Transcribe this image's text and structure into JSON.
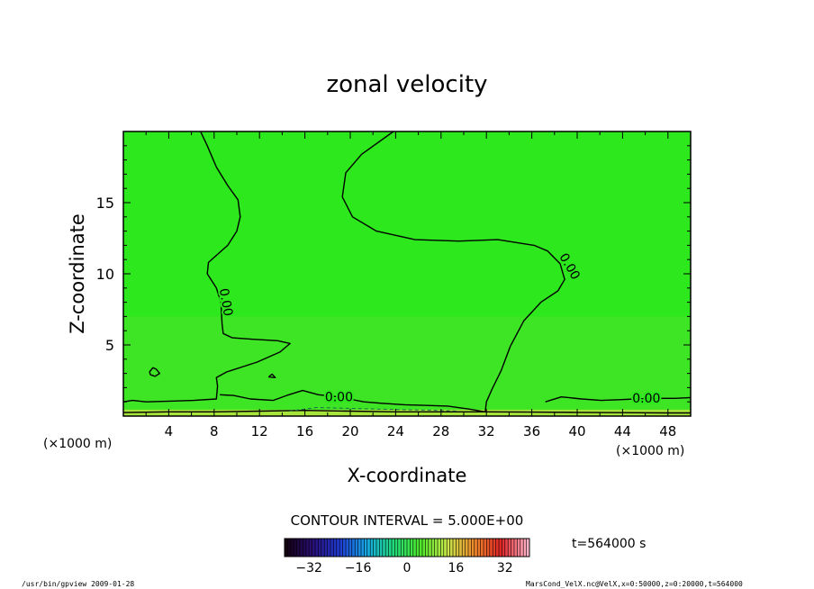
{
  "chart_data": {
    "type": "heatmap",
    "title": "zonal velocity",
    "xlabel": "X-coordinate",
    "ylabel": "Z-coordinate",
    "x_unit_left": "(×1000 m)",
    "x_unit_right": "(×1000 m)",
    "xlim": [
      0,
      50
    ],
    "ylim": [
      0,
      20
    ],
    "x_ticks": [
      4,
      8,
      12,
      16,
      20,
      24,
      28,
      32,
      36,
      40,
      44,
      48
    ],
    "x_tick_labels": [
      "4",
      "8",
      "12",
      "16",
      "20",
      "24",
      "28",
      "32",
      "36",
      "40",
      "44",
      "48"
    ],
    "y_ticks": [
      5,
      10,
      15
    ],
    "y_tick_labels": [
      "5",
      "10",
      "15"
    ],
    "contour_interval_text": "CONTOUR INTERVAL = 5.000E+00",
    "time_text": "t=564000 s",
    "colorbar": {
      "range": [
        -40,
        40
      ],
      "ticks": [
        -32,
        -16,
        0,
        16,
        32
      ],
      "tick_labels": [
        "−32",
        "−16",
        "0",
        "16",
        "32"
      ]
    },
    "contour_labels": [
      {
        "text": "0.00",
        "x": 9.0,
        "z": 8.0,
        "rotate": 80
      },
      {
        "text": "0.00",
        "x": 19.0,
        "z": 1.3,
        "rotate": 0
      },
      {
        "text": "0.00",
        "x": 39.3,
        "z": 10.5,
        "rotate": 60
      },
      {
        "text": "0.00",
        "x": 46.1,
        "z": 1.2,
        "rotate": 0
      }
    ],
    "contours": [
      {
        "level": 0,
        "dashed": false,
        "points": [
          [
            6.8,
            20
          ],
          [
            7.4,
            19
          ],
          [
            8.2,
            17.5
          ],
          [
            9.2,
            16.2
          ],
          [
            10.1,
            15.2
          ],
          [
            10.3,
            14
          ],
          [
            10,
            13
          ],
          [
            9.2,
            12
          ],
          [
            7.5,
            10.8
          ],
          [
            7.4,
            10
          ],
          [
            8.2,
            9
          ],
          [
            8.6,
            8
          ],
          [
            8.7,
            6.5
          ],
          [
            8.8,
            5.8
          ],
          [
            9.6,
            5.5
          ],
          [
            11.4,
            5.4
          ],
          [
            13.6,
            5.3
          ],
          [
            14.7,
            5.1
          ],
          [
            13.8,
            4.5
          ],
          [
            11.8,
            3.8
          ],
          [
            9.1,
            3.1
          ],
          [
            8.2,
            2.7
          ],
          [
            8.3,
            2.1
          ],
          [
            8.2,
            1.2
          ],
          [
            6.2,
            1.1
          ],
          [
            4.1,
            1.05
          ],
          [
            2,
            1
          ],
          [
            0.8,
            1.1
          ],
          [
            0,
            1.0
          ]
        ]
      },
      {
        "level": 0,
        "dashed": false,
        "points": [
          [
            23.8,
            20
          ],
          [
            21,
            18.4
          ],
          [
            19.6,
            17.1
          ],
          [
            19.3,
            15.4
          ],
          [
            20.2,
            14
          ],
          [
            22.3,
            13
          ],
          [
            25.7,
            12.4
          ],
          [
            29.6,
            12.3
          ],
          [
            33,
            12.4
          ],
          [
            36.2,
            12.0
          ],
          [
            37.4,
            11.6
          ],
          [
            38.5,
            10.7
          ],
          [
            38.9,
            9.6
          ],
          [
            38.3,
            8.8
          ],
          [
            36.8,
            8.0
          ],
          [
            35.3,
            6.7
          ],
          [
            34.1,
            4.9
          ],
          [
            33.3,
            3.2
          ],
          [
            32.5,
            1.9
          ],
          [
            32.0,
            1.0
          ],
          [
            31.9,
            0.3
          ],
          [
            30.4,
            0.5
          ],
          [
            28.6,
            0.7
          ],
          [
            26.5,
            0.75
          ],
          [
            24.8,
            0.8
          ],
          [
            22.8,
            0.9
          ],
          [
            21.2,
            1.0
          ],
          [
            19.9,
            1.2
          ],
          [
            18.5,
            1.4
          ],
          [
            17.2,
            1.5
          ],
          [
            15.8,
            1.8
          ],
          [
            14.4,
            1.45
          ],
          [
            13.2,
            1.1
          ],
          [
            11.2,
            1.2
          ],
          [
            9.7,
            1.45
          ],
          [
            8.5,
            1.5
          ]
        ]
      },
      {
        "level": 0,
        "dashed": false,
        "points": [
          [
            37.2,
            1.0
          ],
          [
            38.6,
            1.35
          ],
          [
            40.4,
            1.2
          ],
          [
            42.1,
            1.1
          ],
          [
            43.7,
            1.15
          ],
          [
            45.2,
            1.2
          ],
          [
            47,
            1.25
          ],
          [
            48.6,
            1.25
          ],
          [
            50,
            1.3
          ]
        ]
      },
      {
        "level": 0,
        "dashed": false,
        "points": [
          [
            2.3,
            3.1
          ],
          [
            2.6,
            3.4
          ],
          [
            2.9,
            3.3
          ],
          [
            3.2,
            3.0
          ],
          [
            2.8,
            2.8
          ],
          [
            2.4,
            2.9
          ],
          [
            2.3,
            3.1
          ]
        ]
      },
      {
        "level": 0,
        "dashed": false,
        "points": [
          [
            12.8,
            2.75
          ],
          [
            13.1,
            2.95
          ],
          [
            13.4,
            2.7
          ],
          [
            12.8,
            2.75
          ]
        ]
      },
      {
        "level": 0,
        "dashed": false,
        "points": [
          [
            0,
            0.25
          ],
          [
            4,
            0.3
          ],
          [
            8,
            0.3
          ],
          [
            12,
            0.35
          ],
          [
            16,
            0.4
          ],
          [
            20,
            0.35
          ],
          [
            24,
            0.3
          ],
          [
            28,
            0.3
          ],
          [
            32,
            0.3
          ],
          [
            36,
            0.28
          ],
          [
            40,
            0.26
          ],
          [
            44,
            0.24
          ],
          [
            48,
            0.22
          ],
          [
            50,
            0.22
          ]
        ]
      },
      {
        "level": -5,
        "dashed": true,
        "points": [
          [
            14.6,
            0.35
          ],
          [
            17,
            0.6
          ],
          [
            19.5,
            0.55
          ],
          [
            22,
            0.5
          ],
          [
            24.5,
            0.45
          ],
          [
            27,
            0.42
          ],
          [
            29.5,
            0.35
          ]
        ]
      }
    ],
    "colors": {
      "field": "#2ce81c",
      "field_light": "#5ee036",
      "bottom_band": "#a6e43c",
      "colorbar_stops": [
        "#150012",
        "#2a0f78",
        "#1f3bd4",
        "#16a8e6",
        "#1fdc7a",
        "#4fe82c",
        "#c8e84a",
        "#f08a2a",
        "#e12424",
        "#ffb3c8"
      ]
    }
  },
  "footer": {
    "left": "/usr/bin/gpview  2009-01-28",
    "right": "MarsCond_VelX.nc@VelX,x=0:50000,z=0:20000,t=564000"
  }
}
